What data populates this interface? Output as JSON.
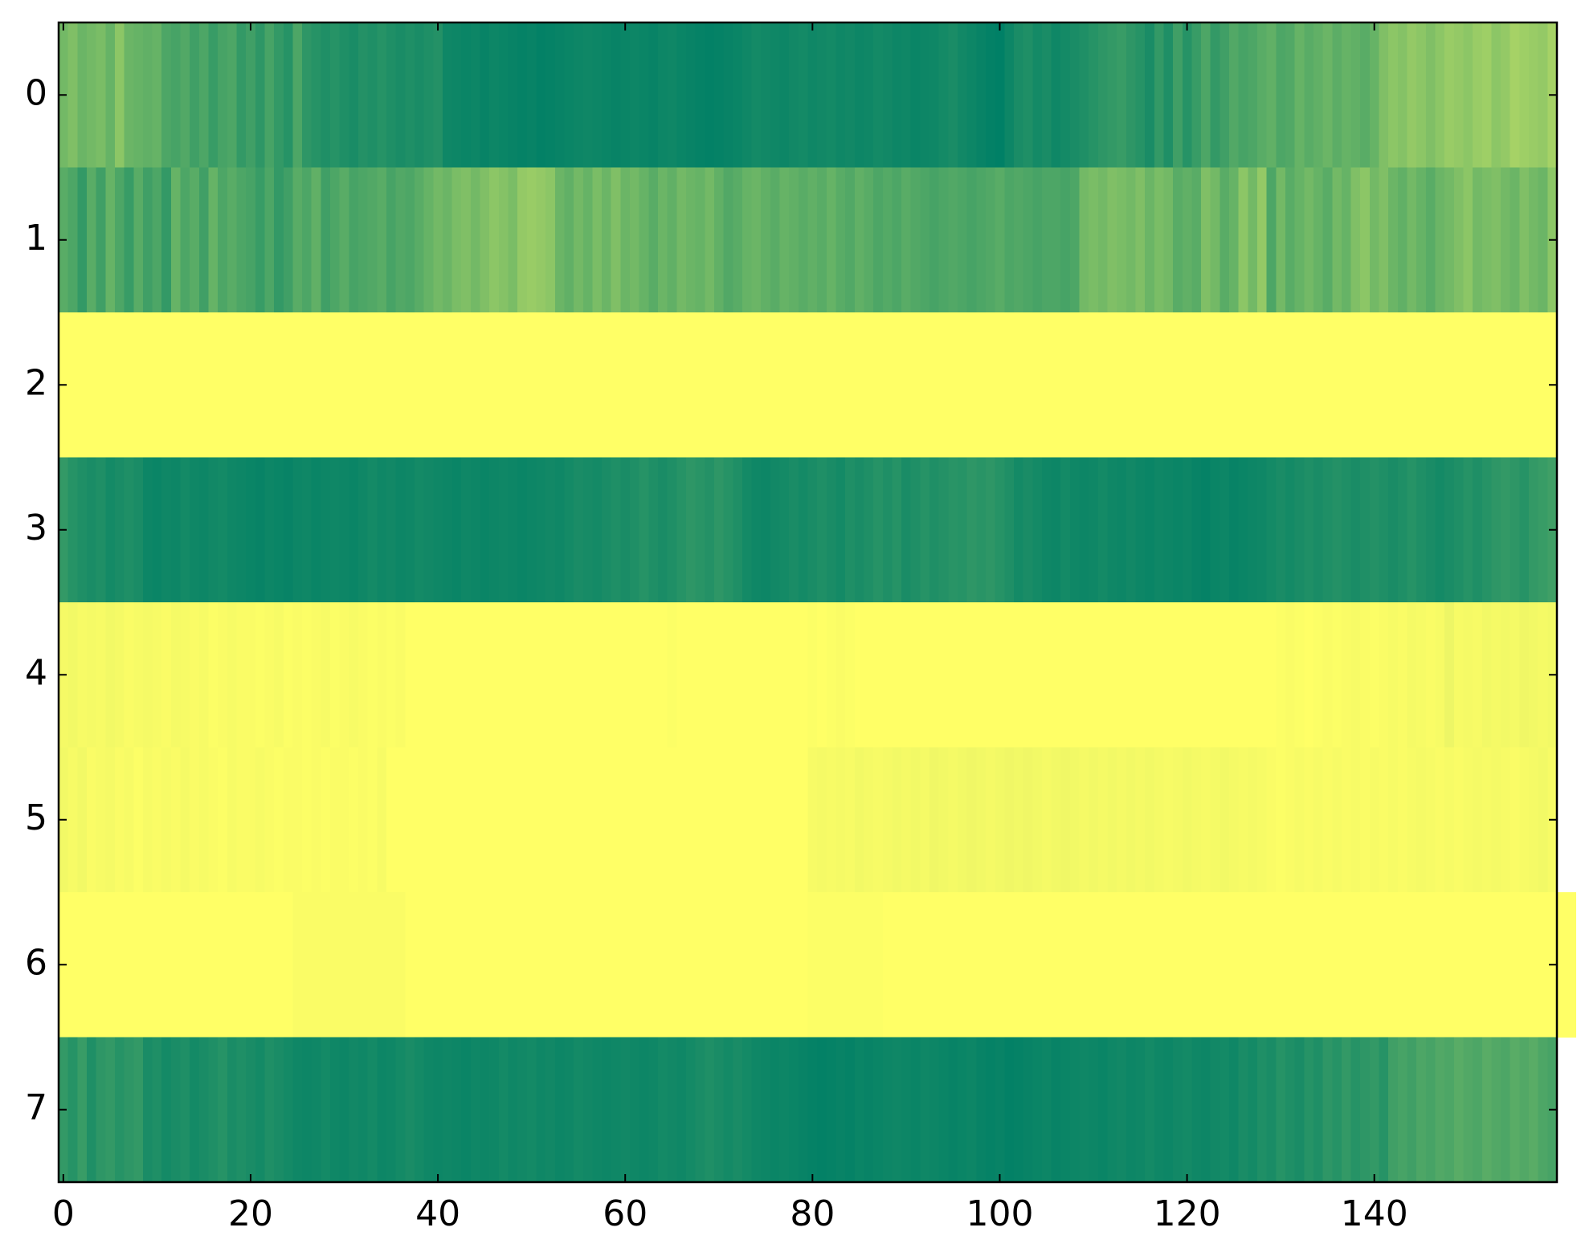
{
  "chart_data": {
    "type": "heatmap",
    "colormap": "summer",
    "clim": [
      0,
      1
    ],
    "xlim": [
      -0.5,
      159.5
    ],
    "ylim": [
      7.5,
      -0.5
    ],
    "xticks": [
      0,
      20,
      40,
      60,
      80,
      100,
      120,
      140
    ],
    "yticks": [
      0,
      1,
      2,
      3,
      4,
      5,
      6,
      7
    ],
    "values": [
      [
        0.45,
        0.5,
        0.42,
        0.45,
        0.48,
        0.4,
        0.55,
        0.42,
        0.4,
        0.38,
        0.4,
        0.3,
        0.28,
        0.32,
        0.25,
        0.3,
        0.22,
        0.28,
        0.3,
        0.2,
        0.25,
        0.18,
        0.28,
        0.2,
        0.15,
        0.3,
        0.18,
        0.15,
        0.12,
        0.15,
        0.12,
        0.1,
        0.14,
        0.12,
        0.15,
        0.12,
        0.1,
        0.12,
        0.1,
        0.12,
        0.14,
        0.06,
        0.05,
        0.04,
        0.05,
        0.03,
        0.05,
        0.04,
        0.03,
        0.02,
        0.03,
        0.01,
        0.02,
        0.03,
        0.04,
        0.05,
        0.06,
        0.05,
        0.04,
        0.03,
        0.04,
        0.05,
        0.04,
        0.03,
        0.05,
        0.06,
        0.04,
        0.03,
        0.02,
        0.01,
        0.02,
        0.03,
        0.04,
        0.06,
        0.08,
        0.07,
        0.06,
        0.05,
        0.07,
        0.08,
        0.06,
        0.07,
        0.08,
        0.06,
        0.07,
        0.05,
        0.06,
        0.08,
        0.07,
        0.05,
        0.06,
        0.04,
        0.05,
        0.06,
        0.08,
        0.1,
        0.07,
        0.05,
        0.03,
        0.01,
        0.0,
        0.05,
        0.1,
        0.12,
        0.08,
        0.1,
        0.06,
        0.08,
        0.1,
        0.12,
        0.15,
        0.18,
        0.2,
        0.22,
        0.18,
        0.15,
        0.1,
        0.2,
        0.12,
        0.25,
        0.15,
        0.22,
        0.3,
        0.2,
        0.25,
        0.32,
        0.28,
        0.3,
        0.35,
        0.38,
        0.3,
        0.32,
        0.4,
        0.35,
        0.38,
        0.42,
        0.36,
        0.4,
        0.38,
        0.35,
        0.4,
        0.5,
        0.55,
        0.52,
        0.58,
        0.55,
        0.5,
        0.55,
        0.6,
        0.58,
        0.55,
        0.6,
        0.62,
        0.55,
        0.58,
        0.65,
        0.62,
        0.6,
        0.58,
        0.65
      ],
      [
        0.35,
        0.3,
        0.2,
        0.35,
        0.25,
        0.4,
        0.3,
        0.22,
        0.35,
        0.25,
        0.3,
        0.2,
        0.4,
        0.3,
        0.35,
        0.25,
        0.4,
        0.3,
        0.35,
        0.3,
        0.28,
        0.22,
        0.3,
        0.2,
        0.25,
        0.35,
        0.3,
        0.38,
        0.25,
        0.3,
        0.35,
        0.28,
        0.3,
        0.32,
        0.35,
        0.28,
        0.32,
        0.3,
        0.35,
        0.4,
        0.45,
        0.42,
        0.48,
        0.5,
        0.45,
        0.5,
        0.55,
        0.52,
        0.48,
        0.58,
        0.6,
        0.58,
        0.55,
        0.42,
        0.38,
        0.45,
        0.4,
        0.48,
        0.42,
        0.5,
        0.42,
        0.45,
        0.4,
        0.35,
        0.42,
        0.38,
        0.45,
        0.42,
        0.4,
        0.45,
        0.38,
        0.32,
        0.35,
        0.4,
        0.42,
        0.38,
        0.35,
        0.4,
        0.38,
        0.35,
        0.38,
        0.35,
        0.4,
        0.35,
        0.32,
        0.38,
        0.35,
        0.3,
        0.33,
        0.3,
        0.35,
        0.32,
        0.3,
        0.28,
        0.3,
        0.32,
        0.3,
        0.28,
        0.3,
        0.32,
        0.35,
        0.3,
        0.32,
        0.3,
        0.28,
        0.3,
        0.3,
        0.28,
        0.3,
        0.45,
        0.48,
        0.45,
        0.5,
        0.48,
        0.45,
        0.5,
        0.42,
        0.48,
        0.45,
        0.35,
        0.38,
        0.35,
        0.5,
        0.45,
        0.35,
        0.4,
        0.55,
        0.45,
        0.58,
        0.3,
        0.45,
        0.35,
        0.4,
        0.45,
        0.4,
        0.35,
        0.45,
        0.4,
        0.5,
        0.55,
        0.45,
        0.5,
        0.42,
        0.38,
        0.45,
        0.4,
        0.35,
        0.42,
        0.45,
        0.5,
        0.55,
        0.45,
        0.48,
        0.5,
        0.45,
        0.42,
        0.5,
        0.45,
        0.42,
        0.55
      ],
      [
        1,
        1,
        1,
        1,
        1,
        1,
        1,
        1,
        1,
        1,
        1,
        1,
        1,
        1,
        1,
        1,
        1,
        1,
        1,
        1,
        1,
        1,
        1,
        1,
        1,
        1,
        1,
        1,
        1,
        1,
        1,
        1,
        1,
        1,
        1,
        1,
        1,
        1,
        1,
        1,
        1,
        1,
        1,
        1,
        1,
        1,
        1,
        1,
        1,
        1,
        1,
        1,
        1,
        1,
        1,
        1,
        1,
        1,
        1,
        1,
        1,
        1,
        1,
        1,
        1,
        1,
        1,
        1,
        1,
        1,
        1,
        1,
        1,
        1,
        1,
        1,
        1,
        1,
        1,
        1,
        1,
        1,
        1,
        1,
        1,
        1,
        1,
        1,
        1,
        1,
        1,
        1,
        1,
        1,
        1,
        1,
        1,
        1,
        1,
        1,
        1,
        1,
        1,
        1,
        1,
        1,
        1,
        1,
        1,
        1,
        1,
        1,
        1,
        1,
        1,
        1,
        1,
        1,
        1,
        1,
        1,
        1,
        1,
        1,
        1,
        1,
        1,
        1,
        1,
        1,
        1,
        1,
        1,
        1,
        1,
        1,
        1,
        1,
        1,
        1,
        1,
        1,
        1,
        1,
        1,
        1,
        1,
        1,
        1,
        1,
        1,
        1,
        1,
        1,
        1,
        1,
        1,
        1,
        1,
        1
      ],
      [
        0.2,
        0.15,
        0.12,
        0.1,
        0.12,
        0.08,
        0.1,
        0.12,
        0.1,
        0.05,
        0.04,
        0.06,
        0.05,
        0.08,
        0.06,
        0.05,
        0.07,
        0.08,
        0.06,
        0.05,
        0.04,
        0.03,
        0.05,
        0.04,
        0.03,
        0.05,
        0.06,
        0.04,
        0.05,
        0.06,
        0.05,
        0.04,
        0.06,
        0.08,
        0.06,
        0.07,
        0.05,
        0.06,
        0.08,
        0.07,
        0.06,
        0.05,
        0.04,
        0.06,
        0.05,
        0.04,
        0.05,
        0.06,
        0.05,
        0.04,
        0.05,
        0.06,
        0.07,
        0.06,
        0.08,
        0.1,
        0.09,
        0.08,
        0.1,
        0.12,
        0.1,
        0.12,
        0.15,
        0.12,
        0.1,
        0.12,
        0.15,
        0.18,
        0.16,
        0.14,
        0.18,
        0.15,
        0.12,
        0.08,
        0.06,
        0.05,
        0.07,
        0.08,
        0.1,
        0.08,
        0.1,
        0.12,
        0.1,
        0.08,
        0.12,
        0.1,
        0.12,
        0.15,
        0.12,
        0.15,
        0.1,
        0.12,
        0.15,
        0.12,
        0.14,
        0.16,
        0.15,
        0.18,
        0.16,
        0.18,
        0.15,
        0.12,
        0.08,
        0.1,
        0.08,
        0.06,
        0.05,
        0.08,
        0.06,
        0.05,
        0.06,
        0.08,
        0.06,
        0.05,
        0.07,
        0.05,
        0.04,
        0.06,
        0.05,
        0.04,
        0.05,
        0.03,
        0.02,
        0.04,
        0.05,
        0.03,
        0.04,
        0.05,
        0.06,
        0.08,
        0.1,
        0.08,
        0.1,
        0.12,
        0.1,
        0.12,
        0.14,
        0.12,
        0.1,
        0.12,
        0.14,
        0.12,
        0.1,
        0.12,
        0.15,
        0.12,
        0.1,
        0.08,
        0.1,
        0.12,
        0.15,
        0.12,
        0.15,
        0.18,
        0.2,
        0.18,
        0.15,
        0.2,
        0.22,
        0.25
      ],
      [
        0.96,
        0.95,
        0.97,
        0.96,
        0.97,
        0.95,
        0.96,
        0.98,
        0.97,
        0.96,
        0.97,
        0.98,
        0.96,
        0.97,
        0.98,
        0.97,
        0.99,
        0.98,
        0.97,
        0.98,
        0.98,
        0.99,
        0.98,
        0.97,
        0.99,
        0.98,
        0.99,
        0.98,
        0.97,
        0.99,
        0.98,
        0.97,
        0.98,
        0.99,
        0.98,
        0.99,
        0.98,
        1,
        1,
        1,
        1,
        1,
        1,
        1,
        1,
        1,
        1,
        1,
        1,
        1,
        1,
        1,
        1,
        1,
        1,
        1,
        1,
        1,
        1,
        1,
        1,
        1,
        1,
        1,
        1,
        0.99,
        1,
        1,
        1,
        1,
        1,
        1,
        1,
        1,
        1,
        1,
        1,
        1,
        1,
        1,
        0.99,
        1,
        0.99,
        0.98,
        0.99,
        1,
        1,
        1,
        1,
        1,
        1,
        1,
        1,
        1,
        1,
        1,
        1,
        1,
        1,
        1,
        1,
        1,
        1,
        1,
        1,
        1,
        1,
        1,
        1,
        1,
        1,
        1,
        1,
        1,
        1,
        1,
        1,
        1,
        1,
        1,
        1,
        1,
        1,
        1,
        1,
        1,
        1,
        1,
        1,
        1,
        0.99,
        0.98,
        0.99,
        1,
        0.99,
        0.98,
        0.99,
        0.98,
        0.97,
        0.98,
        0.99,
        0.98,
        0.97,
        0.98,
        0.96,
        0.97,
        0.98,
        0.97,
        0.93,
        0.97,
        0.96,
        0.97,
        0.95,
        0.96,
        0.95,
        0.96,
        0.94,
        0.95,
        0.96,
        0.95
      ],
      [
        0.95,
        0.97,
        0.95,
        0.98,
        0.97,
        0.96,
        0.98,
        0.97,
        0.99,
        0.97,
        0.98,
        0.97,
        0.98,
        0.96,
        0.98,
        0.97,
        0.98,
        0.99,
        0.97,
        0.98,
        0.98,
        0.97,
        0.98,
        0.99,
        0.98,
        0.98,
        0.99,
        0.98,
        0.99,
        0.98,
        0.98,
        0.99,
        0.98,
        0.99,
        0.97,
        1,
        1,
        1,
        1,
        1,
        1,
        1,
        1,
        1,
        1,
        1,
        1,
        1,
        1,
        1,
        1,
        1,
        1,
        1,
        1,
        1,
        1,
        1,
        1,
        1,
        1,
        1,
        1,
        1,
        1,
        1,
        1,
        1,
        1,
        1,
        1,
        1,
        1,
        1,
        1,
        1,
        1,
        1,
        1,
        1,
        0.97,
        0.96,
        0.97,
        0.96,
        0.97,
        0.95,
        0.96,
        0.97,
        0.96,
        0.95,
        0.96,
        0.95,
        0.96,
        0.94,
        0.95,
        0.96,
        0.95,
        0.94,
        0.95,
        0.96,
        0.95,
        0.94,
        0.95,
        0.94,
        0.95,
        0.96,
        0.95,
        0.94,
        0.95,
        0.96,
        0.95,
        0.96,
        0.95,
        0.96,
        0.95,
        0.96,
        0.95,
        0.96,
        0.97,
        0.96,
        0.95,
        0.96,
        0.97,
        0.96,
        0.95,
        0.96,
        0.97,
        0.96,
        0.97,
        0.98,
        0.99,
        0.98,
        0.97,
        0.98,
        0.97,
        0.98,
        0.97,
        0.98,
        0.97,
        0.98,
        0.97,
        0.98,
        0.97,
        0.98,
        0.97,
        0.96,
        0.97,
        0.98,
        0.97,
        0.98,
        0.97,
        0.96,
        0.97,
        0.96,
        0.97,
        0.98,
        0.97,
        0.96,
        0.95,
        0.97
      ],
      [
        1,
        1,
        1,
        1,
        1,
        1,
        1,
        1,
        1,
        1,
        1,
        1,
        1,
        1,
        1,
        1,
        1,
        1,
        1,
        1,
        1,
        1,
        1,
        1,
        1,
        0.98,
        0.98,
        0.98,
        0.98,
        0.98,
        0.98,
        0.98,
        0.98,
        0.98,
        0.98,
        0.98,
        0.98,
        1,
        1,
        1,
        1,
        1,
        1,
        1,
        1,
        1,
        1,
        1,
        1,
        1,
        1,
        1,
        1,
        1,
        1,
        1,
        1,
        1,
        1,
        1,
        1,
        1,
        1,
        1,
        1,
        1,
        1,
        1,
        1,
        1,
        1,
        1,
        1,
        1,
        1,
        1,
        1,
        1,
        1,
        1,
        0.99,
        0.99,
        0.99,
        0.99,
        0.99,
        0.99,
        0.99,
        0.99,
        1,
        1,
        1,
        1,
        1,
        1,
        1,
        1,
        1,
        1,
        1,
        1,
        1,
        1,
        1,
        1,
        1,
        1,
        1,
        1,
        1,
        1,
        1,
        1,
        1,
        1,
        1,
        1,
        1,
        1,
        1,
        1,
        1,
        1,
        1,
        1,
        1,
        1,
        1,
        1,
        1,
        1,
        1,
        1,
        1,
        1,
        1,
        1,
        1,
        1,
        1,
        1,
        1,
        1,
        1,
        1,
        1,
        1,
        1,
        1,
        1,
        1,
        1,
        1,
        1,
        1,
        1,
        1,
        1,
        1,
        1,
        1,
        1,
        1
      ],
      [
        0.2,
        0.15,
        0.22,
        0.12,
        0.18,
        0.2,
        0.15,
        0.18,
        0.2,
        0.1,
        0.12,
        0.08,
        0.1,
        0.12,
        0.08,
        0.1,
        0.12,
        0.15,
        0.1,
        0.12,
        0.1,
        0.08,
        0.12,
        0.1,
        0.08,
        0.06,
        0.05,
        0.06,
        0.08,
        0.06,
        0.05,
        0.07,
        0.06,
        0.08,
        0.05,
        0.06,
        0.08,
        0.1,
        0.08,
        0.06,
        0.05,
        0.06,
        0.05,
        0.04,
        0.06,
        0.05,
        0.06,
        0.08,
        0.06,
        0.07,
        0.08,
        0.06,
        0.07,
        0.05,
        0.06,
        0.08,
        0.07,
        0.06,
        0.05,
        0.06,
        0.07,
        0.06,
        0.05,
        0.06,
        0.08,
        0.07,
        0.06,
        0.08,
        0.1,
        0.12,
        0.1,
        0.08,
        0.1,
        0.08,
        0.06,
        0.05,
        0.04,
        0.05,
        0.04,
        0.03,
        0.02,
        0.01,
        0.02,
        0.03,
        0.02,
        0.04,
        0.03,
        0.04,
        0.05,
        0.06,
        0.05,
        0.04,
        0.06,
        0.05,
        0.04,
        0.03,
        0.04,
        0.05,
        0.03,
        0.02,
        0.03,
        0.01,
        0.02,
        0.03,
        0.04,
        0.05,
        0.03,
        0.04,
        0.05,
        0.06,
        0.05,
        0.04,
        0.06,
        0.07,
        0.05,
        0.06,
        0.08,
        0.06,
        0.05,
        0.07,
        0.08,
        0.06,
        0.05,
        0.07,
        0.08,
        0.06,
        0.1,
        0.08,
        0.12,
        0.1,
        0.15,
        0.12,
        0.1,
        0.15,
        0.12,
        0.18,
        0.15,
        0.2,
        0.15,
        0.18,
        0.2,
        0.15,
        0.25,
        0.28,
        0.25,
        0.3,
        0.28,
        0.32,
        0.3,
        0.35,
        0.32,
        0.3,
        0.35,
        0.32,
        0.3,
        0.35,
        0.32,
        0.35,
        0.3,
        0.28
      ]
    ]
  }
}
